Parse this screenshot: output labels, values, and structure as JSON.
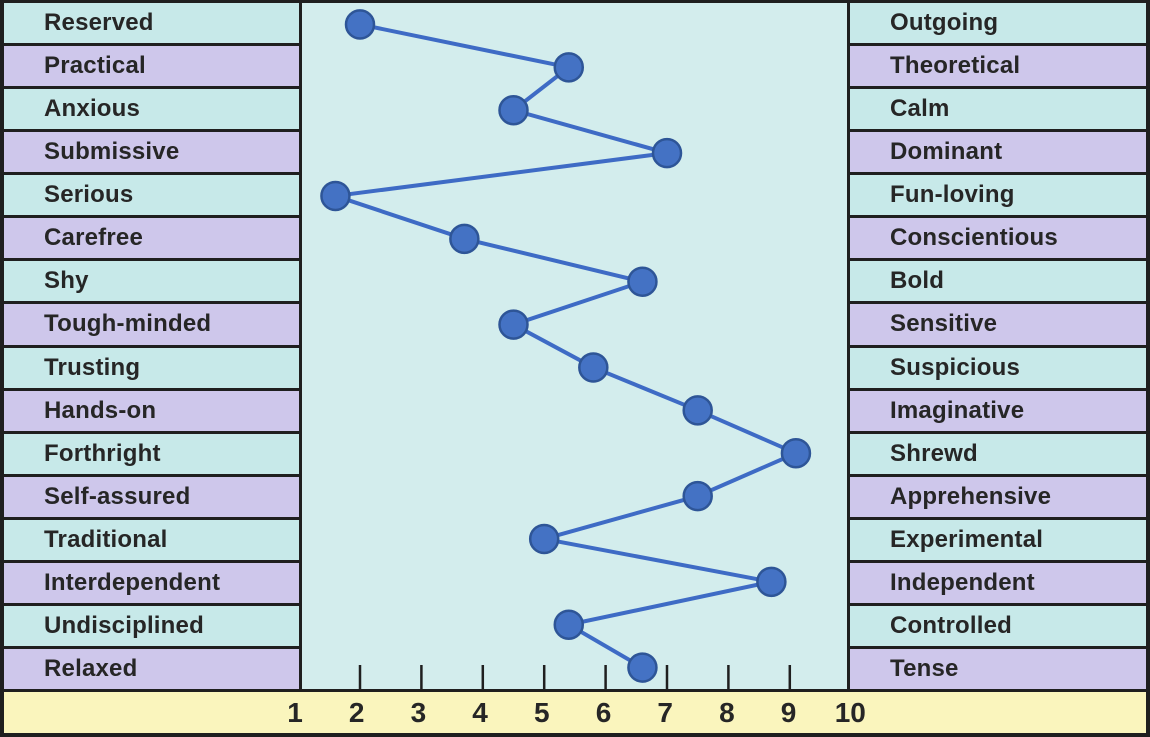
{
  "chart_data": {
    "type": "line",
    "description_style": "bipolar-trait-dot-profile",
    "axis": {
      "min": 1,
      "max": 10,
      "tick_labels": [
        "1",
        "2",
        "3",
        "4",
        "5",
        "6",
        "7",
        "8",
        "9",
        "10"
      ],
      "ticks_with_marks": [
        2,
        3,
        4,
        5,
        6,
        7,
        8,
        9
      ],
      "grid": false
    },
    "rows": [
      {
        "left": "Reserved",
        "right": "Outgoing",
        "value": 2.0
      },
      {
        "left": "Practical",
        "right": "Theoretical",
        "value": 5.4
      },
      {
        "left": "Anxious",
        "right": "Calm",
        "value": 4.5
      },
      {
        "left": "Submissive",
        "right": "Dominant",
        "value": 7.0
      },
      {
        "left": "Serious",
        "right": "Fun-loving",
        "value": 1.6
      },
      {
        "left": "Carefree",
        "right": "Conscientious",
        "value": 3.7
      },
      {
        "left": "Shy",
        "right": "Bold",
        "value": 6.6
      },
      {
        "left": "Tough-minded",
        "right": "Sensitive",
        "value": 4.5
      },
      {
        "left": "Trusting",
        "right": "Suspicious",
        "value": 5.8
      },
      {
        "left": "Hands-on",
        "right": "Imaginative",
        "value": 7.5
      },
      {
        "left": "Forthright",
        "right": "Shrewd",
        "value": 9.1
      },
      {
        "left": "Self-assured",
        "right": "Apprehensive",
        "value": 7.5
      },
      {
        "left": "Traditional",
        "right": "Experimental",
        "value": 5.0
      },
      {
        "left": "Interdependent",
        "right": "Independent",
        "value": 8.7
      },
      {
        "left": "Undisciplined",
        "right": "Controlled",
        "value": 5.4
      },
      {
        "left": "Relaxed",
        "right": "Tense",
        "value": 6.6
      }
    ]
  },
  "colors": {
    "row_cyan": "#C7E9E9",
    "row_lavender": "#CEC7EB",
    "panel_background": "#D3EDED",
    "scale_bar": "#FAF5BD",
    "dot_fill": "#4472C4",
    "dot_stroke": "#2E5597",
    "line": "#3E6BC5",
    "border": "#1F1F1F",
    "text": "#262626"
  }
}
